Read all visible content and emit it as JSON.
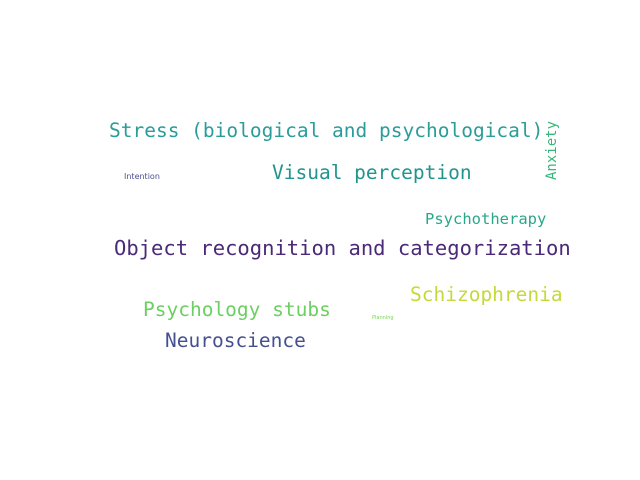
{
  "words": {
    "stress": "Stress (biological and psychological)",
    "visual_perception": "Visual perception",
    "intention": "Intention",
    "anxiety": "Anxiety",
    "psychotherapy": "Psychotherapy",
    "object_recognition": "Object recognition and categorization",
    "schizophrenia": "Schizophrenia",
    "psychology_stubs": "Psychology stubs",
    "planning": "Planning",
    "neuroscience": "Neuroscience"
  },
  "colors": {
    "background": "#ffffff",
    "stress": "#2a9d9a",
    "visual_perception": "#22948e",
    "intention": "#4a4f8f",
    "anxiety": "#35b779",
    "psychotherapy": "#2aa78a",
    "object_recognition": "#4a2a78",
    "schizophrenia": "#c7d93a",
    "psychology_stubs": "#6ccf62",
    "planning": "#7ad151",
    "neuroscience": "#46508f"
  }
}
